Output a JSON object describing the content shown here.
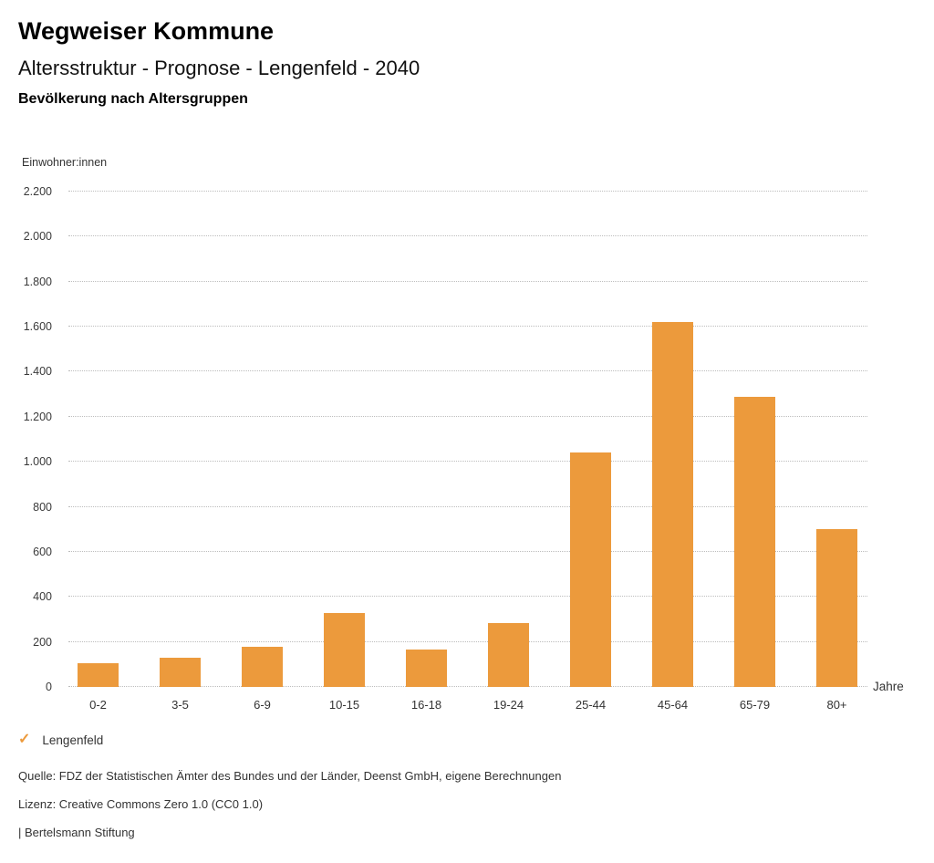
{
  "header": {
    "title": "Wegweiser Kommune",
    "subtitle": "Altersstruktur - Prognose - Lengenfeld - 2040",
    "section_title": "Bevölkerung nach Altersgruppen"
  },
  "chart_data": {
    "type": "bar",
    "title": "Bevölkerung nach Altersgruppen",
    "categories": [
      "0-2",
      "3-5",
      "6-9",
      "10-15",
      "16-18",
      "19-24",
      "25-44",
      "45-64",
      "65-79",
      "80+"
    ],
    "series": [
      {
        "name": "Lengenfeld",
        "values": [
          105,
          130,
          180,
          330,
          165,
          285,
          1040,
          1620,
          1290,
          700
        ]
      }
    ],
    "xlabel": "Jahre",
    "ylabel": "Einwohner:innen",
    "ylim": [
      0,
      2200
    ],
    "ytick_step": 200,
    "ytick_labels": [
      "0",
      "200",
      "400",
      "600",
      "800",
      "1.000",
      "1.200",
      "1.600",
      "1.800",
      "2.000",
      "2.200"
    ],
    "ytick_values": [
      0,
      200,
      400,
      600,
      800,
      1000,
      1200,
      1400,
      1600,
      1800,
      2000,
      2200
    ],
    "ytick_labels_full": [
      "0",
      "200",
      "400",
      "600",
      "800",
      "1.000",
      "1.200",
      "1.400",
      "1.600",
      "1.800",
      "2.000",
      "2.200"
    ],
    "grid": "horizontal-dotted",
    "legend_position": "bottom-left",
    "bar_color": "#EC9A3C"
  },
  "legend": {
    "check_icon": "✓",
    "label": "Lengenfeld",
    "check_color": "#EC9A3C"
  },
  "footer": {
    "source": "Quelle: FDZ der Statistischen Ämter des Bundes und der Länder, Deenst GmbH, eigene Berechnungen",
    "license": "Lizenz: Creative Commons Zero 1.0 (CC0 1.0)",
    "brand": "| Bertelsmann Stiftung"
  }
}
